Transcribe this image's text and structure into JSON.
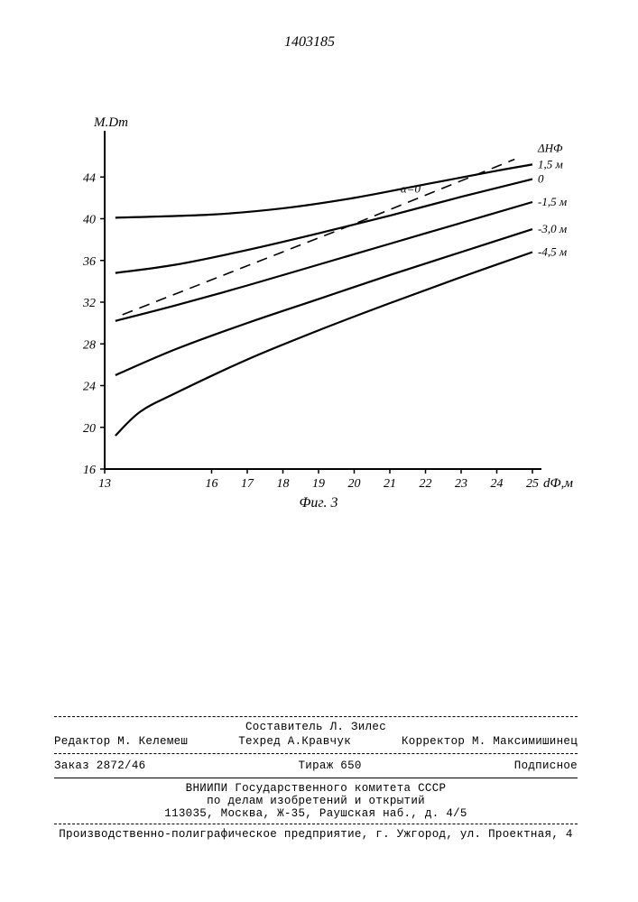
{
  "document_number": "1403185",
  "chart": {
    "type": "line",
    "x_label": "dФ,м",
    "y_label": "M.Dт",
    "xlim": [
      13,
      25
    ],
    "ylim": [
      16,
      48
    ],
    "x_ticks": [
      13,
      16,
      17,
      18,
      19,
      20,
      21,
      22,
      23,
      24,
      25
    ],
    "y_ticks": [
      16,
      20,
      24,
      28,
      32,
      36,
      40,
      44
    ],
    "axis_color": "#000000",
    "background_color": "#ffffff",
    "line_width_series": 2.2,
    "line_width_dashed": 1.6,
    "alpha_label": "α=0",
    "delta_h_label": "ΔHФ",
    "series": [
      {
        "label": "1,5 м",
        "points": [
          [
            13.3,
            40.1
          ],
          [
            16,
            40.4
          ],
          [
            18,
            41.0
          ],
          [
            20,
            42.0
          ],
          [
            22,
            43.3
          ],
          [
            24,
            44.6
          ],
          [
            25,
            45.2
          ]
        ]
      },
      {
        "label": "0",
        "points": [
          [
            13.3,
            34.8
          ],
          [
            15,
            35.6
          ],
          [
            17,
            37.0
          ],
          [
            19,
            38.6
          ],
          [
            21,
            40.3
          ],
          [
            23,
            42.1
          ],
          [
            25,
            43.8
          ]
        ]
      },
      {
        "label": "-1,5 м",
        "points": [
          [
            13.3,
            30.2
          ],
          [
            15,
            31.7
          ],
          [
            17,
            33.6
          ],
          [
            19,
            35.6
          ],
          [
            21,
            37.6
          ],
          [
            23,
            39.6
          ],
          [
            25,
            41.6
          ]
        ]
      },
      {
        "label": "-3,0 м",
        "points": [
          [
            13.3,
            25.0
          ],
          [
            15,
            27.5
          ],
          [
            17,
            30.0
          ],
          [
            19,
            32.3
          ],
          [
            21,
            34.6
          ],
          [
            23,
            36.8
          ],
          [
            25,
            39.0
          ]
        ]
      },
      {
        "label": "-4,5 м",
        "points": [
          [
            13.3,
            19.2
          ],
          [
            14,
            21.5
          ],
          [
            15,
            23.3
          ],
          [
            17,
            26.5
          ],
          [
            19,
            29.3
          ],
          [
            21,
            31.9
          ],
          [
            23,
            34.4
          ],
          [
            25,
            36.8
          ]
        ]
      }
    ],
    "dashed_series": {
      "points": [
        [
          13.5,
          30.8
        ],
        [
          20,
          39.5
        ],
        [
          24.5,
          45.7
        ]
      ]
    },
    "figure_caption": "Фиг. 3"
  },
  "footer": {
    "line1_left": "Редактор М. Келемеш",
    "line1_center_top": "Составитель Л. Зилес",
    "line1_center_bot": "Техред А.Кравчук",
    "line1_right": "Корректор М. Максимишинец",
    "line2_left": "Заказ 2872/46",
    "line2_center": "Тираж 650",
    "line2_right": "Подписное",
    "line3": "ВНИИПИ Государственного комитета СССР",
    "line4": "по делам изобретений и открытий",
    "line5": "113035, Москва, Ж-35, Раушская наб., д. 4/5",
    "line6": "Производственно-полиграфическое предприятие, г. Ужгород, ул. Проектная, 4"
  }
}
